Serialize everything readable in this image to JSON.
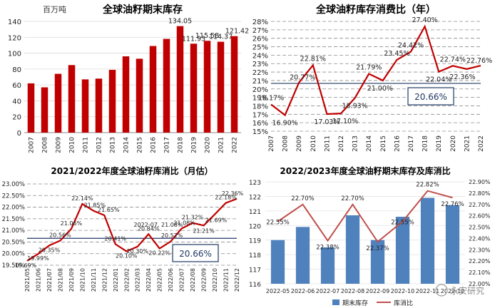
{
  "chart_data": [
    {
      "type": "bar",
      "title": "全球油籽期末库存",
      "unit_label": "百万吨",
      "categories": [
        "2007",
        "2008",
        "2009",
        "2010",
        "2011",
        "2012",
        "2013",
        "2014",
        "2015",
        "2016",
        "2017",
        "2018",
        "2019",
        "2020",
        "2021",
        "2022"
      ],
      "values": [
        62,
        57,
        74,
        85,
        67,
        68,
        79,
        96,
        93,
        109,
        118,
        134.05,
        111.93,
        115.58,
        114.37,
        121.42
      ],
      "data_labels": {
        "11": "134.05",
        "12": "111.93",
        "13": "115.58",
        "14": "114.37",
        "15": "121.42"
      },
      "ylim": [
        0,
        140
      ],
      "yticks": [
        "0",
        "20",
        "40",
        "60",
        "80",
        "100",
        "120",
        "140"
      ],
      "bar_color": "#c00000"
    },
    {
      "type": "line",
      "title": "全球油籽库存消费比（年）",
      "categories": [
        "2007",
        "2008",
        "2009",
        "2010",
        "2011",
        "2012",
        "2013",
        "2014",
        "2015",
        "2016",
        "2017",
        "2018",
        "2019",
        "2020",
        "2021",
        "2022"
      ],
      "values": [
        18.17,
        16.9,
        20.77,
        22.81,
        17.03,
        17.1,
        18.93,
        21.79,
        21.0,
        23.45,
        24.42,
        27.4,
        22.04,
        22.74,
        22.36,
        22.76
      ],
      "data_labels": [
        "18.17%",
        "16.90%",
        "20.77%",
        "22.81%",
        "17.03%",
        "17.10%",
        "18.93%",
        "21.79%",
        "21.00%",
        "23.45%",
        "24.42%",
        "27.40%",
        "22.04%",
        "22.74%",
        "22.36%",
        "22.76%"
      ],
      "ylim": [
        15,
        28
      ],
      "yticks": [
        "15%",
        "16%",
        "17%",
        "18%",
        "19%",
        "20%",
        "21%",
        "22%",
        "23%",
        "24%",
        "25%",
        "26%",
        "27%",
        "28%"
      ],
      "reference_value": 20.66,
      "reference_label": "20.66%",
      "line_color": "#c00000"
    },
    {
      "type": "line",
      "title": "2021/2022年度全球油籽库消比（月估）",
      "categories": [
        "2021/05",
        "2021/06",
        "2021/07",
        "2021/08",
        "2021/09",
        "2021/10",
        "2021/11",
        "2021/12",
        "2022/01",
        "2022/02",
        "2022/03",
        "2022/04",
        "2022/05",
        "2022/06",
        "2022/07",
        "2022/08",
        "2022/09",
        "2022/10",
        "2022/11",
        "2022/12"
      ],
      "values": [
        19.69,
        19.99,
        20.35,
        20.56,
        21.06,
        22.14,
        21.85,
        21.65,
        20.41,
        20.1,
        20.3,
        20.84,
        20.22,
        20.52,
        21.08,
        21.32,
        21.21,
        21.69,
        22.18,
        22.36
      ],
      "data_labels": [
        "19.69%",
        "19.99%",
        "20.35%",
        "20.56%",
        "21.06%",
        "22.14%",
        "21.85%",
        "21.65%",
        "20.41%",
        "20.10%",
        "20.30%",
        "20.84%",
        "20.22%",
        "20.52%",
        "21.08%",
        "21.32%",
        "21.21%",
        "21.69%",
        "22.18%",
        "22.36%"
      ],
      "extra_label": "2022-07, 21.08%",
      "ylim": [
        19.5,
        23
      ],
      "yticks": [
        "19.50%",
        "20.00%",
        "20.50%",
        "21.00%",
        "21.50%",
        "22.00%",
        "22.50%",
        "23.00%"
      ],
      "reference_value": 20.66,
      "reference_label": "20.66%",
      "line_color": "#c00000"
    },
    {
      "type": "bar+line",
      "title": "2022/2023年度全球油籽期末库存及库消比",
      "categories": [
        "2022-05",
        "2022-06",
        "2022-07",
        "2022-08",
        "2022-09",
        "2022-10",
        "2022-11",
        "2022-12"
      ],
      "series": [
        {
          "name": "期末库存",
          "kind": "bar",
          "axis": "left",
          "values": [
            119.0,
            119.9,
            118.5,
            120.7,
            119.0,
            120.6,
            121.9,
            121.4
          ],
          "color": "#4f81bd"
        },
        {
          "name": "库消比",
          "kind": "line",
          "axis": "right",
          "values": [
            22.55,
            22.7,
            22.38,
            22.7,
            22.37,
            22.55,
            22.82,
            22.76
          ],
          "color": "#c0504d",
          "data_labels": [
            "22.55%",
            "22.70%",
            "22.38%",
            "22.70%",
            "22.37%",
            "22.55%",
            "22.82%",
            "22.76%"
          ]
        }
      ],
      "ylim_left": [
        116,
        123
      ],
      "yticks_left": [
        "116",
        "117",
        "118",
        "119",
        "120",
        "121",
        "122",
        "123"
      ],
      "ylim_right": [
        22.0,
        22.9
      ],
      "yticks_right": [
        "22.00%",
        "22.10%",
        "22.20%",
        "22.30%",
        "22.40%",
        "22.50%",
        "22.60%",
        "22.70%",
        "22.80%",
        "22.90%"
      ],
      "legend": [
        "期末库存",
        "库消比"
      ],
      "watermark": "永安研究"
    }
  ]
}
